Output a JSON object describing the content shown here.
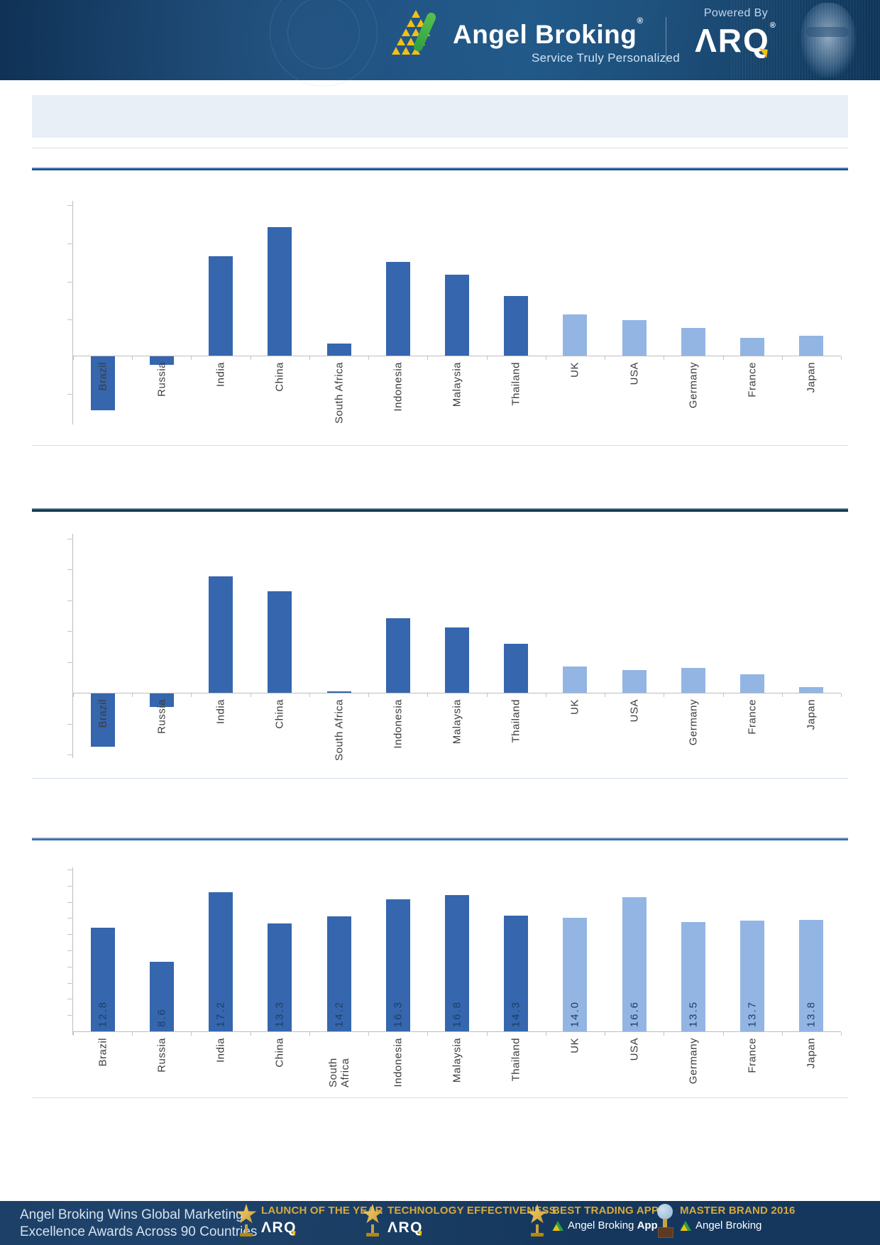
{
  "header": {
    "brand": "Angel Broking",
    "brand_mark": "®",
    "tagline": "Service Truly Personalized",
    "powered_by_label": "Powered By",
    "powered_brand": "ARQ",
    "powered_brand_display": "ΛRQ",
    "powered_brand_mark": "®"
  },
  "title_banner": {
    "text": ""
  },
  "section_titles": [
    "",
    "",
    ""
  ],
  "chart_data": [
    {
      "type": "bar",
      "title": "",
      "categories": [
        "Brazil",
        "Russia",
        "India",
        "China",
        "South Africa",
        "Indonesia",
        "Malaysia",
        "Thailand",
        "UK",
        "USA",
        "Germany",
        "France",
        "Japan"
      ],
      "values": [
        -1.42,
        -0.23,
        2.62,
        3.38,
        0.32,
        2.47,
        2.13,
        1.57,
        1.08,
        0.94,
        0.73,
        0.47,
        0.53
      ],
      "value_units": "gridline_steps",
      "y_axis_numeric_labels_visible": false,
      "ylim": [
        -2,
        4
      ],
      "grid": false,
      "legend": "none",
      "dark_series_count": 8,
      "dark_series_meaning": "emerging markets",
      "light_series_meaning": "developed markets"
    },
    {
      "type": "bar",
      "title": "",
      "categories": [
        "Brazil",
        "Russia",
        "India",
        "China",
        "South Africa",
        "Indonesia",
        "Malaysia",
        "Thailand",
        "UK",
        "USA",
        "Germany",
        "France",
        "Japan"
      ],
      "values": [
        -1.72,
        -0.43,
        3.77,
        3.28,
        0.05,
        2.42,
        2.11,
        1.58,
        0.86,
        0.74,
        0.81,
        0.6,
        0.18
      ],
      "value_units": "gridline_steps",
      "y_axis_numeric_labels_visible": false,
      "ylim": [
        -2,
        5
      ],
      "grid": false,
      "legend": "none",
      "dark_series_count": 8,
      "dark_series_meaning": "emerging markets",
      "light_series_meaning": "developed markets"
    },
    {
      "type": "bar",
      "title": "",
      "categories": [
        "Brazil",
        "Russia",
        "India",
        "China",
        "South Africa",
        "Indonesia",
        "Malaysia",
        "Thailand",
        "UK",
        "USA",
        "Germany",
        "France",
        "Japan"
      ],
      "values": [
        12.8,
        8.6,
        17.2,
        13.3,
        14.2,
        16.3,
        16.8,
        14.3,
        14.0,
        16.6,
        13.5,
        13.7,
        13.8
      ],
      "bar_labels": [
        "12.8",
        "8.6",
        "17.2",
        "13.3",
        "14.2",
        "16.3",
        "16.8",
        "14.3",
        "14.0",
        "16.6",
        "13.5",
        "13.7",
        "13.8"
      ],
      "y_axis_numeric_labels_visible": false,
      "ylim": [
        0,
        20
      ],
      "tick_step": 2,
      "grid": false,
      "legend": "none",
      "dark_series_count": 8,
      "dark_series_meaning": "emerging markets",
      "light_series_meaning": "developed markets"
    }
  ],
  "footer": {
    "headline_line1": "Angel Broking Wins Global Marketing",
    "headline_line2": "Excellence Awards Across 90 Countries",
    "awards": [
      {
        "title": "LAUNCH OF THE YEAR",
        "subtitle": "ARQ",
        "subtitle_display": "ΛRQ",
        "icon": "star-trophy"
      },
      {
        "title": "TECHNOLOGY EFFECTIVENESS",
        "subtitle": "ARQ",
        "subtitle_display": "ΛRQ",
        "icon": "star-trophy"
      },
      {
        "title": "BEST TRADING APP",
        "subtitle_prefix": "Angel Broking ",
        "subtitle_bold": "App",
        "icon": "star-trophy"
      },
      {
        "title": "MASTER BRAND 2016",
        "subtitle_prefix": "Angel Broking",
        "subtitle_bold": "",
        "icon": "globe-trophy"
      }
    ]
  },
  "colors": {
    "dark_bar": "#3566ae",
    "light_bar": "#92b5e3",
    "header_bg": "#164a7a",
    "footer_bg": "#15375d",
    "banner_bg": "#e9eff7",
    "divider_blue": "#2a64a8",
    "gold": "#d9a93c",
    "axis_gray": "#bdbdbd",
    "category_label_text": "#3c3c3c",
    "value_label_text": "#1d3e66"
  }
}
